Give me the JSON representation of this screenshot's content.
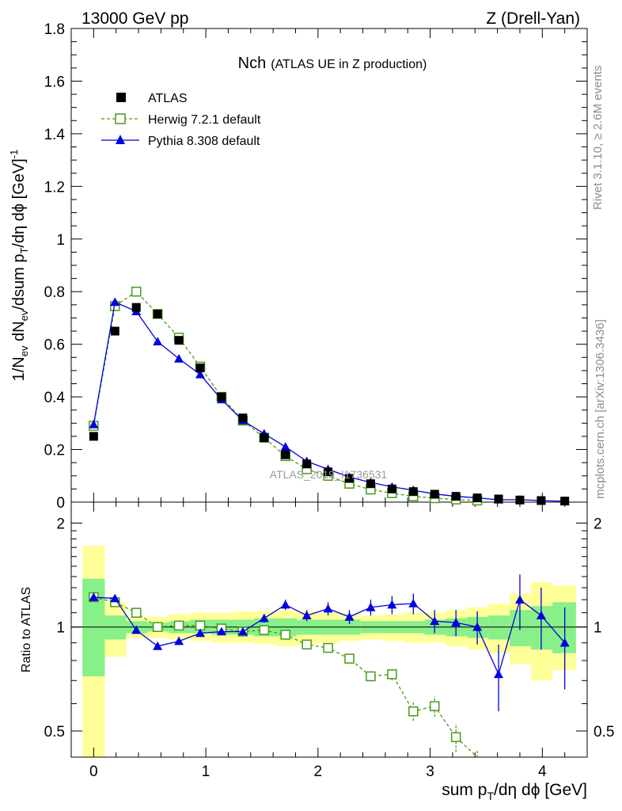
{
  "header": {
    "left": "13000 GeV pp",
    "right": "Z (Drell-Yan)"
  },
  "title": {
    "main": "Nch",
    "sub": "(ATLAS UE in Z production)"
  },
  "watermark": "ATLAS_2019_I1736531",
  "side_labels": {
    "rivet": "Rivet 3.1.10, ≥ 2.6M events",
    "mcplots": "mcplots.cern.ch [arXiv:1306.3436]"
  },
  "legend": [
    {
      "label": "ATLAS",
      "marker": "filled-square",
      "color": "#000000"
    },
    {
      "label": "Herwig 7.2.1 default",
      "marker": "open-square-dashed",
      "color": "#4a9a1a"
    },
    {
      "label": "Pythia 8.308 default",
      "marker": "filled-triangle",
      "color": "#0000e0"
    }
  ],
  "axes": {
    "ylabel_top": "1/N_ev dN_ev/dsum p_T/dη dϕ [GeV]^-1",
    "ylabel_bottom": "Ratio to ATLAS",
    "xlabel": "sum p_T/dη dϕ [GeV]",
    "x_ticks": [
      "0",
      "1",
      "2",
      "3",
      "4"
    ],
    "top_y_ticks": [
      "0",
      "0.2",
      "0.4",
      "0.6",
      "0.8",
      "1",
      "1.2",
      "1.4",
      "1.6",
      "1.8"
    ],
    "bottom_y_ticks": [
      "0.5",
      "1",
      "2"
    ]
  },
  "chart_data": [
    {
      "type": "scatter",
      "panel": "main",
      "xlim": [
        -0.2,
        4.4
      ],
      "ylim": [
        0,
        1.8
      ],
      "x": [
        0,
        0.19,
        0.38,
        0.57,
        0.76,
        0.95,
        1.14,
        1.33,
        1.52,
        1.71,
        1.9,
        2.09,
        2.28,
        2.47,
        2.66,
        2.85,
        3.04,
        3.23,
        3.42,
        3.61,
        3.8,
        3.99,
        4.2
      ],
      "series": [
        {
          "name": "ATLAS",
          "values": [
            0.25,
            0.65,
            0.74,
            0.715,
            0.615,
            0.51,
            0.4,
            0.32,
            0.245,
            0.18,
            0.145,
            0.115,
            0.09,
            0.07,
            0.05,
            0.04,
            0.03,
            0.022,
            0.016,
            0.012,
            0.008,
            0.006,
            0.004
          ]
        },
        {
          "name": "Herwig 7.2.1 default",
          "values": [
            0.29,
            0.745,
            0.8,
            0.715,
            0.625,
            0.515,
            0.4,
            0.31,
            0.245,
            0.175,
            0.125,
            0.1,
            0.07,
            0.048,
            0.034,
            0.022,
            0.015,
            0.01,
            0.006
          ]
        },
        {
          "name": "Pythia 8.308 default",
          "values": [
            0.295,
            0.76,
            0.725,
            0.61,
            0.545,
            0.485,
            0.39,
            0.31,
            0.26,
            0.21,
            0.155,
            0.125,
            0.095,
            0.075,
            0.058,
            0.045,
            0.031,
            0.022,
            0.016,
            0.009,
            0.009,
            0.006,
            0.003
          ]
        }
      ]
    },
    {
      "type": "scatter",
      "panel": "ratio",
      "xlim": [
        -0.2,
        4.4
      ],
      "ylim": [
        0.42,
        2.3
      ],
      "scale": "log",
      "x_edges": [
        -0.1,
        0.1,
        0.29,
        0.48,
        0.67,
        0.86,
        1.05,
        1.24,
        1.43,
        1.62,
        1.81,
        2.0,
        2.19,
        2.38,
        2.57,
        2.76,
        2.95,
        3.14,
        3.33,
        3.52,
        3.71,
        3.9,
        4.09,
        4.3
      ],
      "band_green": [
        [
          0.72,
          1.38
        ],
        [
          0.92,
          1.08
        ],
        [
          0.96,
          1.04
        ],
        [
          0.97,
          1.03
        ],
        [
          0.96,
          1.04
        ],
        [
          0.96,
          1.05
        ],
        [
          0.95,
          1.05
        ],
        [
          0.95,
          1.05
        ],
        [
          0.94,
          1.06
        ],
        [
          0.94,
          1.06
        ],
        [
          0.95,
          1.05
        ],
        [
          0.95,
          1.05
        ],
        [
          0.95,
          1.05
        ],
        [
          0.96,
          1.04
        ],
        [
          0.96,
          1.04
        ],
        [
          0.96,
          1.04
        ],
        [
          0.95,
          1.05
        ],
        [
          0.94,
          1.06
        ],
        [
          0.93,
          1.07
        ],
        [
          0.92,
          1.08
        ],
        [
          0.88,
          1.12
        ],
        [
          0.86,
          1.15
        ],
        [
          0.84,
          1.18
        ]
      ],
      "band_yellow": [
        [
          0.35,
          1.72
        ],
        [
          0.82,
          1.18
        ],
        [
          0.93,
          1.07
        ],
        [
          0.93,
          1.07
        ],
        [
          0.92,
          1.09
        ],
        [
          0.91,
          1.1
        ],
        [
          0.9,
          1.1
        ],
        [
          0.9,
          1.11
        ],
        [
          0.89,
          1.11
        ],
        [
          0.88,
          1.12
        ],
        [
          0.89,
          1.11
        ],
        [
          0.9,
          1.1
        ],
        [
          0.91,
          1.09
        ],
        [
          0.92,
          1.08
        ],
        [
          0.91,
          1.09
        ],
        [
          0.9,
          1.1
        ],
        [
          0.9,
          1.1
        ],
        [
          0.88,
          1.12
        ],
        [
          0.86,
          1.14
        ],
        [
          0.84,
          1.17
        ],
        [
          0.78,
          1.25
        ],
        [
          0.7,
          1.35
        ],
        [
          0.75,
          1.32
        ]
      ],
      "x": [
        0,
        0.19,
        0.38,
        0.57,
        0.76,
        0.95,
        1.14,
        1.33,
        1.52,
        1.71,
        1.9,
        2.09,
        2.28,
        2.47,
        2.66,
        2.85,
        3.04,
        3.23,
        3.42,
        3.61,
        3.8,
        3.99,
        4.2
      ],
      "series": [
        {
          "name": "Herwig 7.2.1 default",
          "values": [
            1.22,
            1.18,
            1.1,
            1.0,
            1.01,
            1.01,
            0.99,
            0.97,
            0.98,
            0.95,
            0.89,
            0.87,
            0.81,
            0.72,
            0.73,
            0.57,
            0.59,
            0.48,
            0.39
          ],
          "errors": [
            0.02,
            0.02,
            0.01,
            0.01,
            0.01,
            0.01,
            0.01,
            0.01,
            0.01,
            0.01,
            0.01,
            0.01,
            0.015,
            0.025,
            0.03,
            0.035,
            0.04,
            0.045,
            0.05
          ]
        },
        {
          "name": "Pythia 8.308 default",
          "values": [
            1.22,
            1.21,
            0.98,
            0.88,
            0.91,
            0.96,
            0.97,
            0.97,
            1.06,
            1.16,
            1.08,
            1.13,
            1.07,
            1.14,
            1.16,
            1.17,
            1.04,
            1.03,
            1.0,
            0.73,
            1.2,
            1.08,
            0.9
          ],
          "errors": [
            0.03,
            0.02,
            0.01,
            0.01,
            0.01,
            0.01,
            0.02,
            0.02,
            0.03,
            0.04,
            0.04,
            0.05,
            0.05,
            0.06,
            0.07,
            0.08,
            0.08,
            0.09,
            0.11,
            0.16,
            0.22,
            0.22,
            0.24
          ]
        }
      ]
    }
  ]
}
